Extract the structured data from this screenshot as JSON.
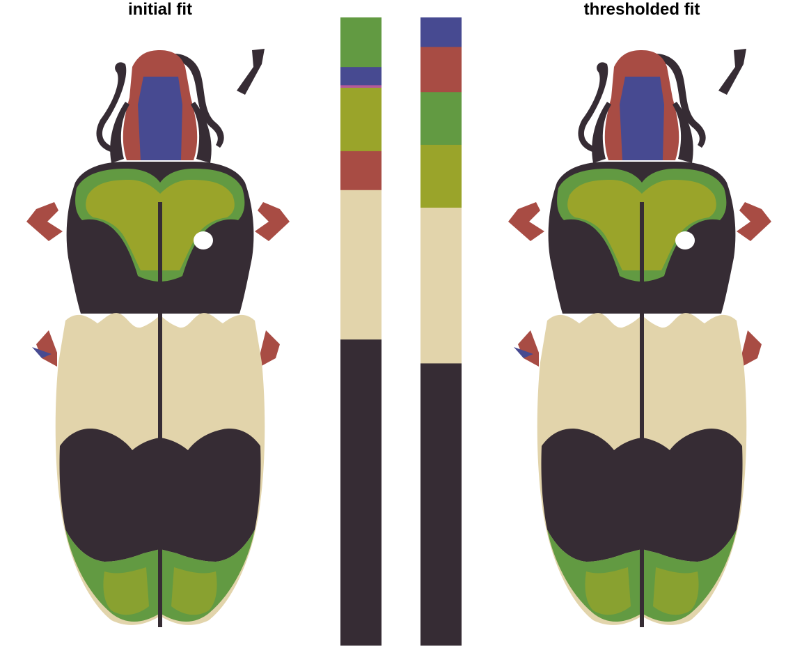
{
  "titles": {
    "left": "initial fit",
    "right": "thresholded fit"
  },
  "palette": {
    "dark": "#362c34",
    "cream": "#e2d4ab",
    "green": "#629a42",
    "olive": "#9aa42a",
    "red": "#a84c44",
    "blue": "#474a91",
    "pink": "#b45a9a"
  },
  "colorbars": {
    "initial": [
      {
        "name": "green",
        "fraction": 0.079
      },
      {
        "name": "blue",
        "fraction": 0.029
      },
      {
        "name": "pink",
        "fraction": 0.004
      },
      {
        "name": "olive",
        "fraction": 0.101
      },
      {
        "name": "red",
        "fraction": 0.062
      },
      {
        "name": "cream",
        "fraction": 0.238
      },
      {
        "name": "dark",
        "fraction": 0.487
      }
    ],
    "thresholded": [
      {
        "name": "blue",
        "fraction": 0.047
      },
      {
        "name": "red",
        "fraction": 0.072
      },
      {
        "name": "green",
        "fraction": 0.084
      },
      {
        "name": "olive",
        "fraction": 0.1
      },
      {
        "name": "cream",
        "fraction": 0.248
      },
      {
        "name": "dark",
        "fraction": 0.449
      }
    ]
  }
}
